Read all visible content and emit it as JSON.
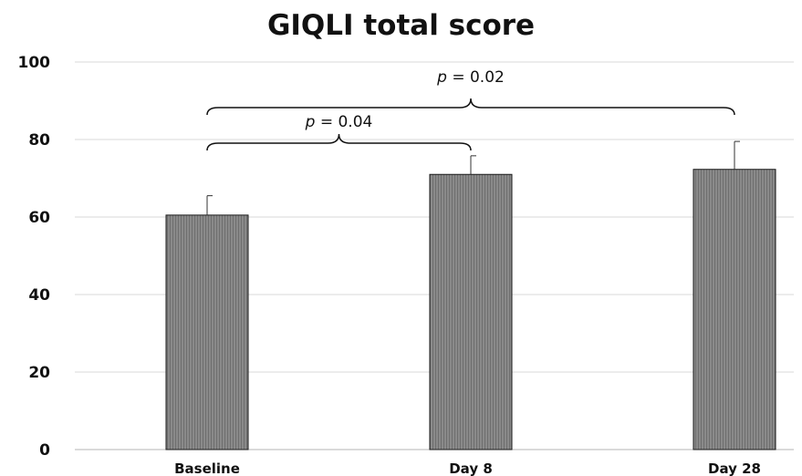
{
  "chart_data": {
    "type": "bar",
    "title": "GIQLI total score",
    "xlabel": "",
    "ylabel": "",
    "categories": [
      "Baseline",
      "Day 8",
      "Day 28"
    ],
    "values": [
      60.5,
      71,
      72.3
    ],
    "error_upper": [
      65.5,
      75.8,
      79.5
    ],
    "ylim": [
      0,
      100
    ],
    "yticks": [
      "0",
      "20",
      "40",
      "60",
      "80",
      "100"
    ],
    "ytick_values": [
      0,
      20,
      40,
      60,
      80,
      100
    ],
    "grid": true,
    "bar_color": "#808080",
    "annotations": [
      {
        "from": "Baseline",
        "to": "Day 8",
        "p_symbol": "p",
        "p_text": " = 0.04"
      },
      {
        "from": "Baseline",
        "to": "Day 28",
        "p_symbol": "p",
        "p_text": " = 0.02"
      }
    ]
  }
}
